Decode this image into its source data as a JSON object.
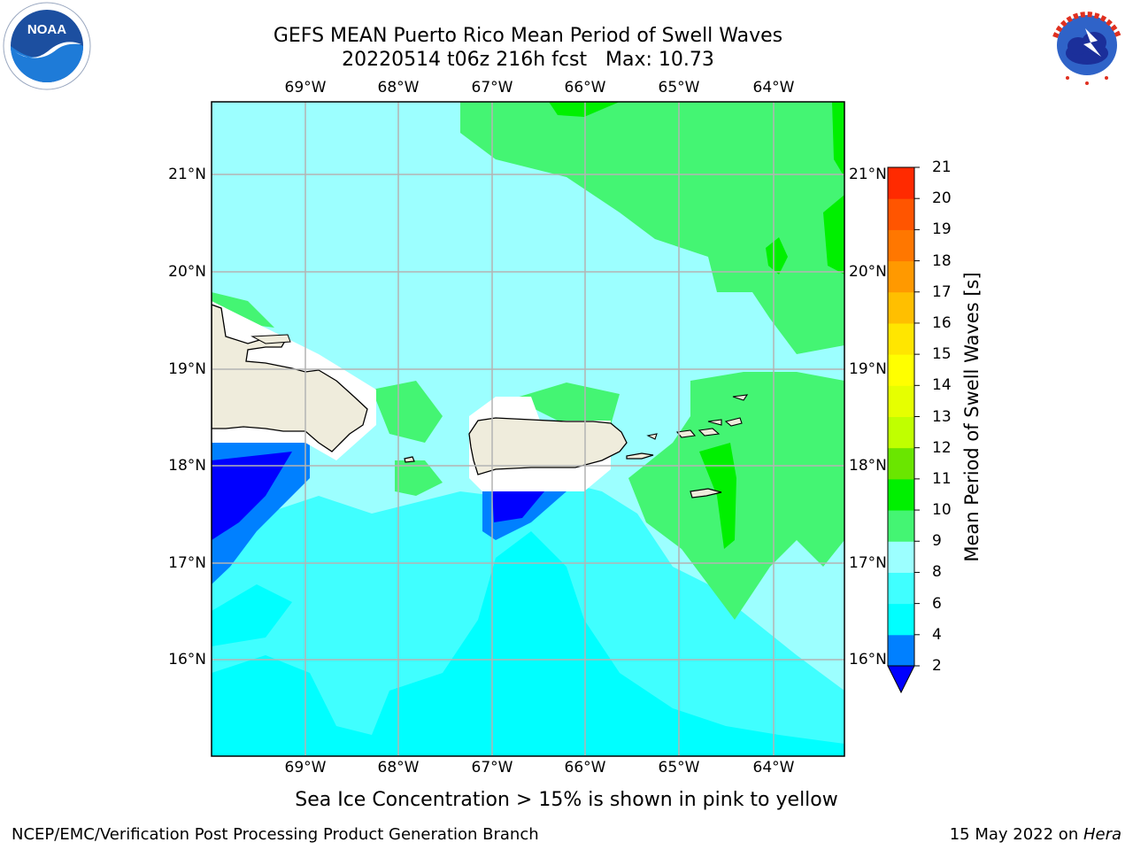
{
  "title": {
    "line1": "GEFS MEAN Puerto Rico Mean Period of Swell Waves",
    "line2": "20220514 t06z 216h fcst   Max: 10.73"
  },
  "axes": {
    "lon_labels": [
      "69°W",
      "68°W",
      "67°W",
      "66°W",
      "65°W",
      "64°W"
    ],
    "lat_labels": [
      "21°N",
      "20°N",
      "19°N",
      "18°N",
      "17°N",
      "16°N"
    ]
  },
  "colorbar": {
    "label": "Mean Period of Swell Waves [s]",
    "ticks": [
      "21",
      "20",
      "19",
      "18",
      "17",
      "16",
      "15",
      "14",
      "13",
      "12",
      "11",
      "10",
      "9",
      "8",
      "6",
      "4",
      "2"
    ],
    "colors": [
      "#0000ff",
      "#0080ff",
      "#00ffff",
      "#40ffff",
      "#9cffff",
      "#44f573",
      "#00f000",
      "#6ae600",
      "#c0ff00",
      "#e6ff00",
      "#ffff00",
      "#ffe600",
      "#ffbf00",
      "#ff9900",
      "#ff7700",
      "#ff5500",
      "#ff2a00",
      "#ff0000"
    ]
  },
  "colors": {
    "land": "#efecdc",
    "grid": "#b4b4b4",
    "ocean_base": "#9cffff",
    "swell_low": "#0000ff",
    "swell_4_6": "#00ffff",
    "swell_6_8": "#40ffff",
    "swell_9_10": "#44f573",
    "swell_10_11": "#00f000"
  },
  "logos": {
    "noaa": "noaa-logo",
    "nws": "nws-logo"
  },
  "note": "Sea Ice Concentration > 15% is shown in pink to yellow",
  "footer": {
    "left": "NCEP/EMC/Verification Post Processing Product Generation Branch",
    "right_prefix": "15 May 2022 on ",
    "right_host": "Hera"
  }
}
